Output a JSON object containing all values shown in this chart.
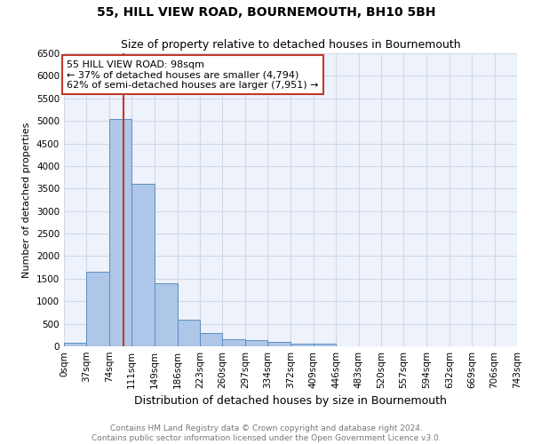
{
  "title": "55, HILL VIEW ROAD, BOURNEMOUTH, BH10 5BH",
  "subtitle": "Size of property relative to detached houses in Bournemouth",
  "xlabel": "Distribution of detached houses by size in Bournemouth",
  "ylabel": "Number of detached properties",
  "bin_edges": [
    0,
    37,
    74,
    111,
    149,
    186,
    223,
    260,
    297,
    334,
    372,
    409,
    446,
    483,
    520,
    557,
    594,
    632,
    669,
    706,
    743
  ],
  "bar_heights": [
    75,
    1650,
    5050,
    3600,
    1400,
    600,
    300,
    150,
    130,
    100,
    50,
    50,
    0,
    0,
    0,
    0,
    0,
    0,
    0,
    0
  ],
  "bar_color": "#aec6e8",
  "bar_edge_color": "#5a8fc2",
  "property_size": 98,
  "property_line_color": "#c0392b",
  "annotation_text": "55 HILL VIEW ROAD: 98sqm\n← 37% of detached houses are smaller (4,794)\n62% of semi-detached houses are larger (7,951) →",
  "annotation_box_color": "#ffffff",
  "annotation_box_edge_color": "#c0392b",
  "ylim": [
    0,
    6500
  ],
  "yticks": [
    0,
    500,
    1000,
    1500,
    2000,
    2500,
    3000,
    3500,
    4000,
    4500,
    5000,
    5500,
    6000,
    6500
  ],
  "footer_text": "Contains HM Land Registry data © Crown copyright and database right 2024.\nContains public sector information licensed under the Open Government Licence v3.0.",
  "title_fontsize": 10,
  "subtitle_fontsize": 9,
  "xlabel_fontsize": 9,
  "ylabel_fontsize": 8,
  "footer_fontsize": 6.5,
  "annotation_fontsize": 8,
  "tick_fontsize": 7.5,
  "grid_color": "#d0d8e8",
  "background_color": "#ffffff",
  "plot_bg_color": "#eef2fa"
}
